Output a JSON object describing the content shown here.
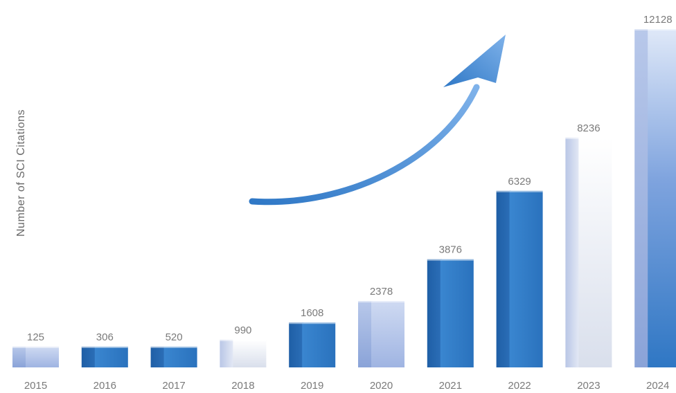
{
  "chart_data": {
    "type": "bar",
    "categories": [
      "2015",
      "2016",
      "2017",
      "2018",
      "2019",
      "2020",
      "2021",
      "2022",
      "2023",
      "2024"
    ],
    "values": [
      125,
      306,
      520,
      990,
      1608,
      2378,
      3876,
      6329,
      8236,
      12128
    ],
    "value_labels": [
      "125",
      "306",
      "520",
      "990",
      "1608",
      "2378",
      "3876",
      "6329",
      "8236",
      "12128"
    ],
    "title": "",
    "xlabel": "",
    "ylabel": "Number of SCI Citations",
    "grid": false,
    "legend": "none",
    "annotations": [
      "upward-trend-arrow"
    ],
    "bar_styles": [
      "light-blue",
      "blue",
      "blue",
      "white",
      "blue",
      "light-blue",
      "blue",
      "blue",
      "white",
      "blue"
    ]
  },
  "colors": {
    "blue": "#2e7cc7",
    "light_blue": "#a9bce6",
    "white": "#eef1f8",
    "arrow": "#4a90d9",
    "text": "#7a7a7a"
  }
}
